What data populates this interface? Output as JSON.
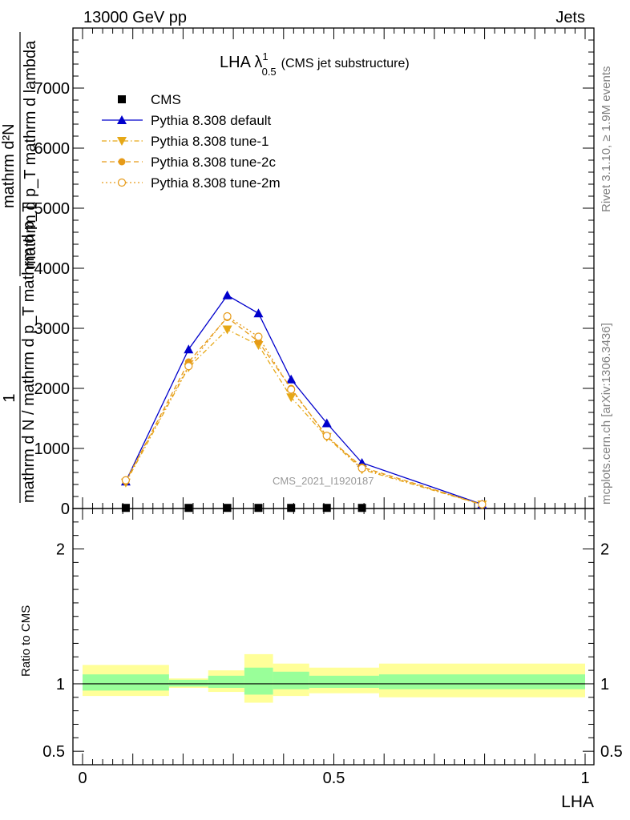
{
  "header": {
    "left": "13000 GeV pp",
    "right": "Jets"
  },
  "side_labels": {
    "rivet": "Rivet 3.1.10, ≥ 1.9M events",
    "mcplots": "mcplots.cern.ch [arXiv:1306.3436]"
  },
  "chart_data": [
    {
      "type": "line",
      "title_main": "LHA λ",
      "title_sup": "1",
      "title_sub": "0.5",
      "title_rest": "(CMS jet substructure)",
      "watermark": "CMS_2021_I1920187",
      "ylabel": {
        "frac_top": "1",
        "frac_bottom": "mathrm d N / mathrm d p_T mathrm d p_T",
        "num_top": "mathrm d²N",
        "num_bottom": "mathrm d p_T mathrm d lambda"
      },
      "xlim": [
        0,
        1
      ],
      "ylim": [
        0,
        8000
      ],
      "y_ticks": [
        0,
        1000,
        2000,
        3000,
        4000,
        5000,
        6000,
        7000
      ],
      "y_tick_labels": [
        "0",
        "1000",
        "2000",
        "3000",
        "4000",
        "5000",
        "6000",
        "7000"
      ],
      "legend_position": "top-left",
      "series": [
        {
          "name": "CMS",
          "color": "#000000",
          "marker": "square",
          "line": "none",
          "x": [
            0.086,
            0.211,
            0.288,
            0.35,
            0.415,
            0.486,
            0.556
          ],
          "y": [
            10,
            10,
            10,
            10,
            10,
            10,
            10
          ]
        },
        {
          "name": "Pythia 8.308 default",
          "color": "#0000cc",
          "marker": "triangle-up",
          "line": "solid",
          "x": [
            0.086,
            0.211,
            0.288,
            0.35,
            0.415,
            0.486,
            0.556,
            0.795
          ],
          "y": [
            450,
            2650,
            3550,
            3250,
            2150,
            1420,
            760,
            70
          ]
        },
        {
          "name": "Pythia 8.308 tune-1",
          "color": "#e6a817",
          "marker": "triangle-down",
          "line": "dashdot",
          "x": [
            0.086,
            0.211,
            0.288,
            0.35,
            0.415,
            0.486,
            0.556,
            0.795
          ],
          "y": [
            430,
            2350,
            2980,
            2720,
            1850,
            1190,
            650,
            65
          ]
        },
        {
          "name": "Pythia 8.308 tune-2c",
          "color": "#e69a17",
          "marker": "circle",
          "line": "dashed",
          "x": [
            0.086,
            0.211,
            0.288,
            0.35,
            0.415,
            0.486,
            0.556,
            0.795
          ],
          "y": [
            450,
            2440,
            3180,
            2780,
            2000,
            1200,
            690,
            65
          ]
        },
        {
          "name": "Pythia 8.308 tune-2m",
          "color": "#e69a17",
          "marker": "open-circle",
          "line": "dotted",
          "x": [
            0.086,
            0.211,
            0.288,
            0.35,
            0.415,
            0.486,
            0.556,
            0.795
          ],
          "y": [
            470,
            2370,
            3200,
            2860,
            1980,
            1210,
            670,
            68
          ]
        }
      ]
    },
    {
      "type": "area",
      "ylabel": "Ratio to CMS",
      "xlabel": "LHA",
      "xlim": [
        0,
        1
      ],
      "ylim": [
        0.4,
        2.3
      ],
      "y_ticks": [
        0.5,
        1,
        2
      ],
      "y_tick_labels": [
        "0.5",
        "1",
        "2"
      ],
      "x_ticks": [
        0,
        0.5,
        1
      ],
      "x_tick_labels": [
        "0",
        "0.5",
        "1"
      ],
      "reference": 1,
      "bands": [
        {
          "x0": 0.0,
          "x1": 0.172,
          "yellow": [
            0.91,
            1.14
          ],
          "green": [
            0.95,
            1.07
          ]
        },
        {
          "x0": 0.172,
          "x1": 0.25,
          "yellow": [
            0.97,
            1.04
          ],
          "green": [
            0.98,
            1.03
          ]
        },
        {
          "x0": 0.25,
          "x1": 0.322,
          "yellow": [
            0.94,
            1.1
          ],
          "green": [
            0.97,
            1.06
          ]
        },
        {
          "x0": 0.322,
          "x1": 0.379,
          "yellow": [
            0.86,
            1.22
          ],
          "green": [
            0.92,
            1.12
          ]
        },
        {
          "x0": 0.379,
          "x1": 0.451,
          "yellow": [
            0.91,
            1.15
          ],
          "green": [
            0.96,
            1.09
          ]
        },
        {
          "x0": 0.451,
          "x1": 0.59,
          "yellow": [
            0.93,
            1.12
          ],
          "green": [
            0.97,
            1.06
          ]
        },
        {
          "x0": 0.59,
          "x1": 1.0,
          "yellow": [
            0.9,
            1.15
          ],
          "green": [
            0.96,
            1.07
          ]
        }
      ]
    }
  ]
}
